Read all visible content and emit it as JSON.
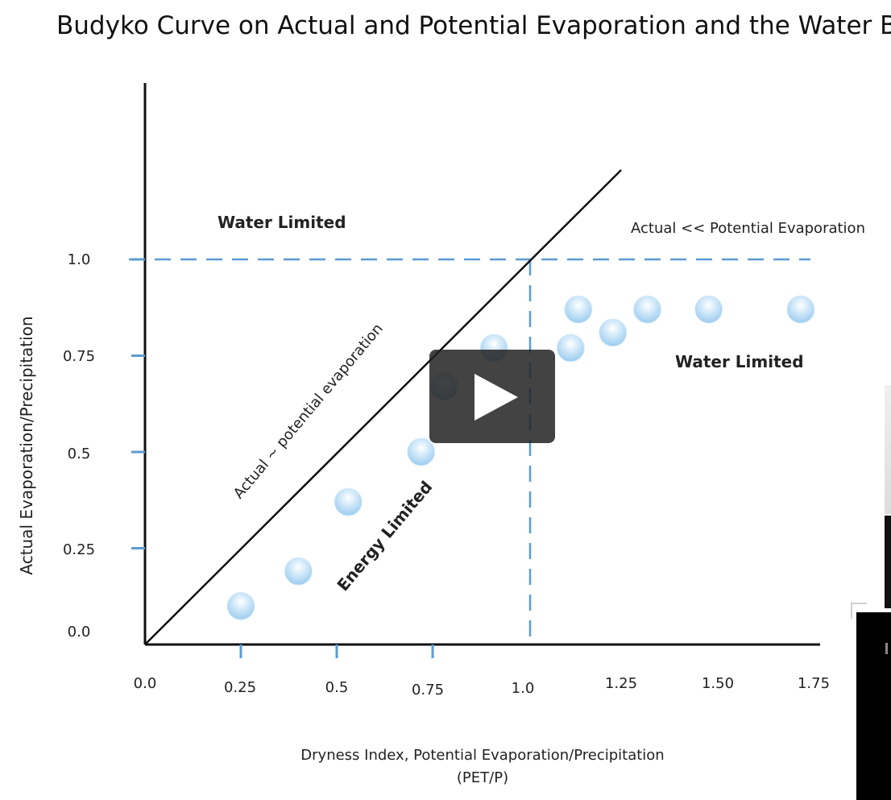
{
  "slide_title": "Budyko Curve on Actual and Potential Evaporation and the Water Bu",
  "annotations": {
    "water_limited_top": "Water Limited",
    "actual_vs_potential": "Actual << Potential Evaporation",
    "diagonal_label": "Actual ~ potential evaporation",
    "water_limited_right": "Water Limited",
    "energy_limited": "Energy Limited"
  },
  "player": {
    "play_icon": "play-icon"
  },
  "colors": {
    "guide_line": "#5b9bd5",
    "axis": "#111111",
    "point": "#a9d4f2",
    "play_bg": "#222222"
  },
  "chart_data": {
    "type": "scatter",
    "xlabel": "Dryness Index, Potential Evaporation/Precipitation",
    "xlabel_line2": "(PET/P)",
    "ylabel": "Actual Evaporation/Precipitation",
    "xlim": [
      0,
      1.75
    ],
    "ylim": [
      0,
      1.0
    ],
    "x_ticks": [
      "0.0",
      "0.25",
      "0.5",
      "0.75",
      "1.0",
      "1.25",
      "1.50",
      "1.75"
    ],
    "y_ticks": [
      "0.0",
      "0.25",
      "0.5",
      "0.75",
      "1.0"
    ],
    "grid": false,
    "reference_lines": {
      "diagonal_1to1": true,
      "horizontal_y": 1.0,
      "vertical_x": 1.0
    },
    "points": [
      {
        "x": 0.25,
        "y": 0.1
      },
      {
        "x": 0.4,
        "y": 0.19
      },
      {
        "x": 0.53,
        "y": 0.37
      },
      {
        "x": 0.72,
        "y": 0.5
      },
      {
        "x": 0.78,
        "y": 0.67
      },
      {
        "x": 0.91,
        "y": 0.77
      },
      {
        "x": 1.11,
        "y": 0.77
      },
      {
        "x": 1.13,
        "y": 0.87
      },
      {
        "x": 1.22,
        "y": 0.81
      },
      {
        "x": 1.31,
        "y": 0.87
      },
      {
        "x": 1.47,
        "y": 0.87
      },
      {
        "x": 1.71,
        "y": 0.87
      }
    ]
  }
}
